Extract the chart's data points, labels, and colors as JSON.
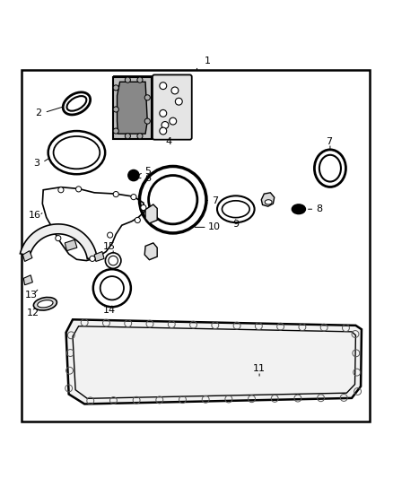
{
  "bg_color": "#ffffff",
  "fig_width": 4.38,
  "fig_height": 5.33,
  "dpi": 100,
  "border": [
    0.05,
    0.03,
    0.9,
    0.9
  ]
}
